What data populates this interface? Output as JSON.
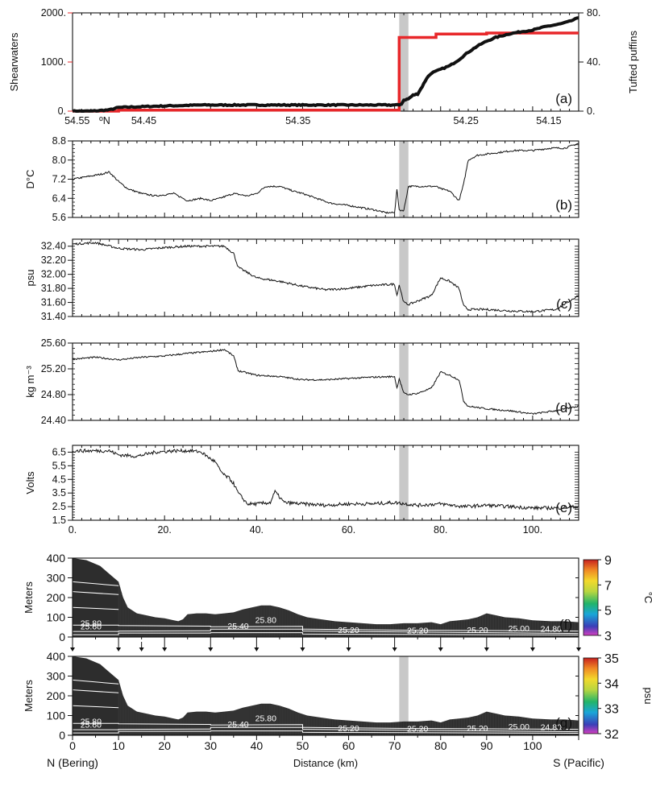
{
  "colors": {
    "shearwaters": "#e8272a",
    "puffins": "#111111",
    "highlight": "#c8c8c8",
    "seafloor": "#222222"
  },
  "chart_data": [
    {
      "id": "a",
      "type": "line",
      "panel_label": "(a)",
      "ylabel_left": "Shearwaters",
      "ylabel_right": "Tufted puffins",
      "x_axis_label": "ºN",
      "x_ticks": [
        "54.55",
        "54.45",
        "54.35",
        "54.25",
        "54.15"
      ],
      "y_ticks_left": [
        "0.",
        "1000.",
        "2000."
      ],
      "y_ticks_right": [
        "0.",
        "40.",
        "80."
      ],
      "ylim_left": [
        0,
        2000
      ],
      "ylim_right": [
        0,
        80
      ],
      "series": [
        {
          "name": "Shearwaters",
          "axis": "left",
          "x_km": [
            0,
            10,
            10,
            71,
            71,
            79,
            79,
            90,
            90,
            110
          ],
          "values": [
            0,
            0,
            20,
            20,
            1500,
            1500,
            1570,
            1570,
            1590,
            1590
          ]
        },
        {
          "name": "Tufted puffins",
          "axis": "right",
          "x_km": [
            0,
            4,
            8,
            10,
            18,
            28,
            32,
            40,
            50,
            60,
            68,
            71,
            71.5,
            72,
            73,
            74,
            75,
            76,
            77,
            78,
            80,
            82,
            84,
            86,
            88,
            90,
            92,
            95,
            98,
            100,
            103,
            106,
            108,
            110
          ],
          "values": [
            0,
            0,
            1,
            3,
            4,
            5,
            5,
            5,
            5,
            5,
            5,
            5,
            6,
            9,
            10,
            13,
            14,
            20,
            27,
            31,
            34,
            37,
            42,
            48,
            53,
            57,
            60,
            63,
            65,
            66,
            69,
            71,
            73,
            76
          ]
        }
      ]
    },
    {
      "id": "b",
      "type": "line",
      "panel_label": "(b)",
      "ylabel": "D°C",
      "y_ticks": [
        "5.6",
        "6.4",
        "7.2",
        "8.0",
        "8.8"
      ],
      "ylim": [
        5.6,
        8.8
      ],
      "series": [
        {
          "x_km": [
            0,
            3,
            6,
            8,
            10,
            12,
            15,
            18,
            22,
            25,
            28,
            30,
            32,
            35,
            38,
            40,
            42,
            45,
            48,
            50,
            53,
            56,
            60,
            63,
            66,
            68,
            70,
            70.5,
            71,
            72,
            73,
            76,
            79,
            80,
            82,
            84,
            85,
            86,
            88,
            92,
            96,
            100,
            104,
            107,
            110
          ],
          "values": [
            7.2,
            7.3,
            7.4,
            7.5,
            7.1,
            6.8,
            6.6,
            6.5,
            6.6,
            6.3,
            6.4,
            6.3,
            6.4,
            6.6,
            6.5,
            6.6,
            6.9,
            6.9,
            6.7,
            6.6,
            6.4,
            6.2,
            6.1,
            6.0,
            5.9,
            5.8,
            5.8,
            6.8,
            5.9,
            5.9,
            6.9,
            6.9,
            6.9,
            6.8,
            6.7,
            6.3,
            7.0,
            8.0,
            8.2,
            8.3,
            8.4,
            8.4,
            8.5,
            8.5,
            8.7
          ]
        }
      ]
    },
    {
      "id": "c",
      "type": "line",
      "panel_label": "(c)",
      "ylabel": "psu",
      "y_ticks": [
        "31.40",
        "31.60",
        "31.80",
        "32.00",
        "32.20",
        "32.40"
      ],
      "ylim": [
        31.4,
        32.5
      ],
      "series": [
        {
          "x_km": [
            0,
            5,
            10,
            15,
            20,
            25,
            30,
            33,
            35,
            36,
            40,
            45,
            50,
            55,
            60,
            65,
            70,
            70.5,
            71,
            72,
            73,
            75,
            78,
            80,
            82,
            84,
            85,
            86,
            90,
            95,
            100,
            105,
            110
          ],
          "values": [
            32.43,
            32.45,
            32.37,
            32.35,
            32.38,
            32.4,
            32.4,
            32.4,
            32.3,
            32.1,
            31.95,
            31.9,
            31.83,
            31.78,
            31.8,
            31.84,
            31.86,
            31.7,
            31.85,
            31.6,
            31.57,
            31.62,
            31.7,
            31.95,
            31.9,
            31.8,
            31.55,
            31.5,
            31.5,
            31.48,
            31.47,
            31.5,
            31.7
          ]
        }
      ]
    },
    {
      "id": "d",
      "type": "line",
      "panel_label": "(d)",
      "ylabel": "kg m⁻³",
      "y_ticks": [
        "24.40",
        "24.80",
        "25.20",
        "25.60"
      ],
      "ylim": [
        24.4,
        25.6
      ],
      "series": [
        {
          "x_km": [
            0,
            5,
            10,
            15,
            20,
            25,
            30,
            33,
            35,
            36,
            40,
            45,
            50,
            55,
            60,
            65,
            70,
            70.5,
            71,
            72,
            73,
            75,
            78,
            80,
            82,
            84,
            85,
            86,
            90,
            95,
            100,
            105,
            110
          ],
          "values": [
            25.35,
            25.38,
            25.34,
            25.38,
            25.4,
            25.44,
            25.47,
            25.5,
            25.4,
            25.17,
            25.1,
            25.08,
            25.03,
            25.03,
            25.05,
            25.07,
            25.08,
            24.9,
            25.05,
            24.82,
            24.8,
            24.82,
            24.9,
            25.15,
            25.1,
            25.03,
            24.7,
            24.62,
            24.58,
            24.55,
            24.5,
            24.55,
            24.62
          ]
        }
      ]
    },
    {
      "id": "e",
      "type": "line",
      "panel_label": "(e)",
      "ylabel": "Volts",
      "y_ticks": [
        "1.5",
        "2.5",
        "3.5",
        "4.5",
        "5.5",
        "6.5"
      ],
      "ylim": [
        1.5,
        7.0
      ],
      "series": [
        {
          "x_km": [
            0,
            5,
            8,
            10,
            14,
            18,
            22,
            26,
            28,
            30,
            31,
            32,
            33,
            34,
            35,
            36,
            38,
            40,
            43,
            44,
            46,
            50,
            55,
            60,
            65,
            70,
            75,
            80,
            85,
            90,
            95,
            100,
            105,
            110
          ],
          "values": [
            6.6,
            6.6,
            6.6,
            6.3,
            6.2,
            6.5,
            6.6,
            6.6,
            6.5,
            6.0,
            5.8,
            5.2,
            4.8,
            4.6,
            4.2,
            3.5,
            2.7,
            2.7,
            2.8,
            3.6,
            2.8,
            2.7,
            2.6,
            2.7,
            2.7,
            2.8,
            2.6,
            2.7,
            2.5,
            2.6,
            2.5,
            2.4,
            2.4,
            2.5
          ]
        }
      ],
      "x_ticks": [
        "0.",
        "20.",
        "40.",
        "60.",
        "80.",
        "100."
      ]
    },
    {
      "id": "f",
      "type": "heatmap",
      "panel_label": "(f)",
      "ylabel": "Meters",
      "y_ticks": [
        "0",
        "100",
        "200",
        "300",
        "400"
      ],
      "ylim": [
        0,
        400
      ],
      "colorbar_ticks": [
        "3",
        "5",
        "7",
        "9"
      ],
      "colorbar_unit": "°C",
      "colorbar_range": [
        3,
        9
      ],
      "contour_labels": [
        "25.60",
        "25.80",
        "25.40",
        "25.20",
        "25.20",
        "25.20",
        "25.80",
        "25.00",
        "24.80"
      ]
    },
    {
      "id": "g",
      "type": "heatmap",
      "panel_label": "(g)",
      "ylabel": "Meters",
      "y_ticks": [
        "0",
        "100",
        "200",
        "300",
        "400"
      ],
      "ylim": [
        0,
        400
      ],
      "colorbar_ticks": [
        "32",
        "33",
        "34",
        "35"
      ],
      "colorbar_unit": "psu",
      "colorbar_range": [
        32,
        35
      ],
      "contour_labels": [
        "25.60",
        "25.80",
        "25.40",
        "25.20",
        "25.20",
        "25.20",
        "25.80",
        "25.00",
        "24.80"
      ],
      "x_ticks": [
        "0",
        "10",
        "20",
        "30",
        "40",
        "50",
        "60",
        "70",
        "80",
        "90",
        "100"
      ],
      "xlabel": "Distance (km)",
      "x_end_left": "N (Bering)",
      "x_end_right": "S (Pacific)"
    }
  ],
  "sections": {
    "station_arrows_km": [
      0,
      10,
      15,
      20,
      30,
      40,
      50,
      60,
      70,
      80,
      90,
      100,
      110
    ],
    "bathymetry_km": [
      0,
      3,
      6,
      8,
      10,
      11,
      12,
      14,
      16,
      18,
      20,
      22,
      23,
      24,
      25,
      27,
      29,
      31,
      33,
      35,
      37,
      39,
      41,
      43,
      45,
      47,
      49,
      51,
      54,
      57,
      60,
      63,
      66,
      69,
      72,
      75,
      78,
      80,
      82,
      84,
      86,
      88,
      90,
      92,
      94,
      97,
      100,
      104,
      107,
      110
    ],
    "bathymetry_depth_m": [
      400,
      390,
      360,
      320,
      280,
      200,
      150,
      120,
      110,
      100,
      95,
      85,
      80,
      90,
      115,
      120,
      120,
      115,
      120,
      125,
      140,
      150,
      160,
      160,
      150,
      135,
      115,
      100,
      90,
      80,
      75,
      70,
      65,
      65,
      70,
      70,
      75,
      65,
      80,
      85,
      90,
      100,
      120,
      110,
      100,
      95,
      85,
      80,
      80,
      75
    ],
    "highlight_km": [
      71,
      73
    ]
  }
}
